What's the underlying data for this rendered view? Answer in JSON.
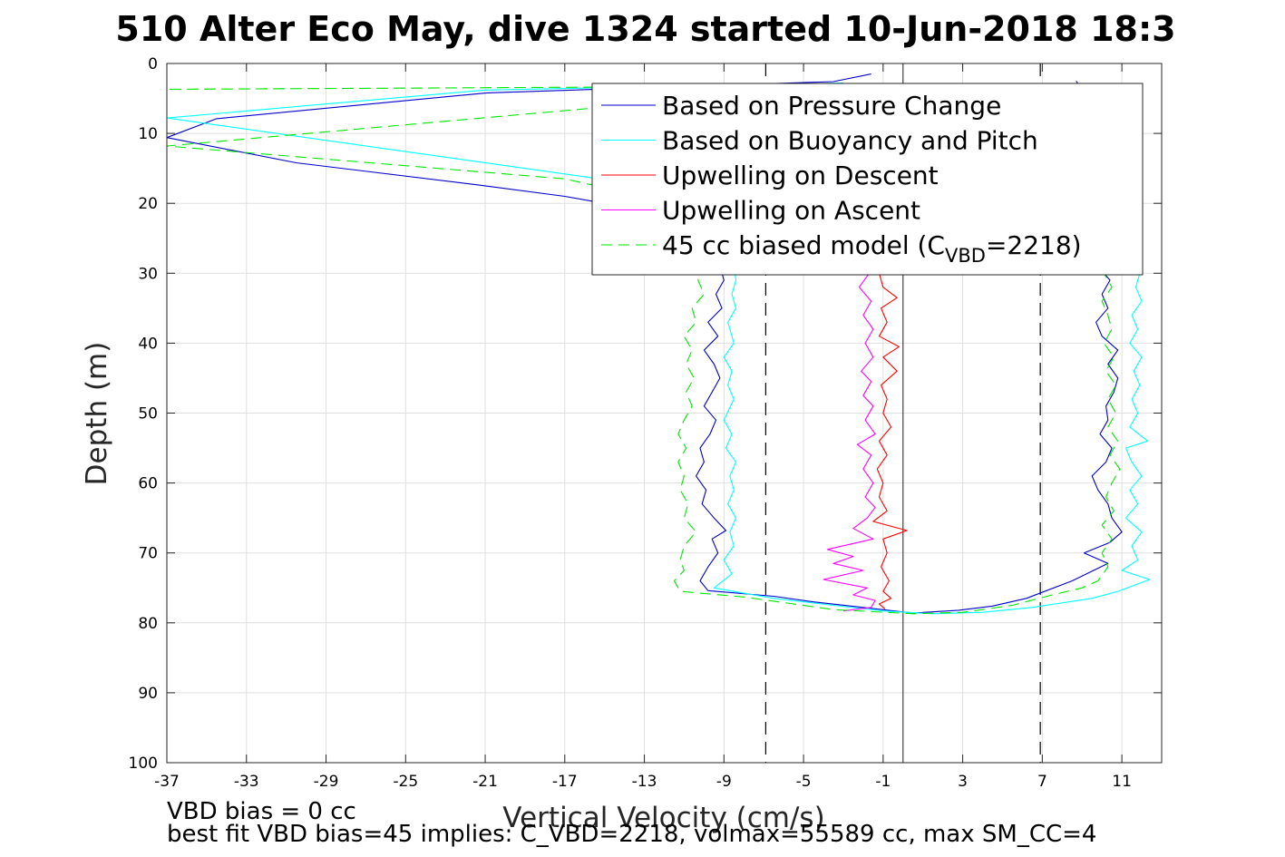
{
  "chart_data": {
    "type": "line",
    "title": "510 Alter Eco May, dive 1324 started 10-Jun-2018 18:3",
    "xlabel": "Vertical Velocity (cm/s)",
    "ylabel": "Depth (m)",
    "xlim": [
      -37,
      13
    ],
    "ylim": [
      0,
      100
    ],
    "y_reversed": true,
    "grid": true,
    "xticks": [
      -37,
      -33,
      -29,
      -25,
      -21,
      -17,
      -13,
      -9,
      -5,
      -1,
      3,
      7,
      11
    ],
    "yticks": [
      0,
      10,
      20,
      30,
      40,
      50,
      60,
      70,
      80,
      90,
      100
    ],
    "legend_placement": "top-right",
    "reference_lines": [
      {
        "x": 0,
        "style": "solid",
        "color": "#404040"
      },
      {
        "x": -6.9,
        "style": "dashed",
        "color": "#000000"
      },
      {
        "x": 6.9,
        "style": "dashed",
        "color": "#000000"
      }
    ],
    "notes": [
      "VBD bias = 0 cc",
      "best fit VBD bias=45 implies: C_VBD=2218, volmax=55589 cc, max SM_CC=4"
    ],
    "series": [
      {
        "name": "Based on Pressure Change",
        "color": "#0000c8",
        "style": "solid",
        "points": [
          [
            -1.6,
            1.5
          ],
          [
            -3.5,
            2.6
          ],
          [
            -20.9,
            4.2
          ],
          [
            -34.5,
            7.9
          ],
          [
            -37.0,
            10.6
          ],
          [
            -30.5,
            14.2
          ],
          [
            -21.0,
            17.5
          ],
          [
            -17.0,
            19.0
          ],
          [
            -12.0,
            21.5
          ],
          [
            -9.5,
            24.0
          ],
          [
            -9.3,
            28.0
          ],
          [
            -9.0,
            31.0
          ],
          [
            -9.4,
            33.0
          ],
          [
            -9.1,
            35.0
          ],
          [
            -9.8,
            37.0
          ],
          [
            -9.3,
            39.0
          ],
          [
            -10.0,
            41.0
          ],
          [
            -9.5,
            43.0
          ],
          [
            -9.2,
            45.0
          ],
          [
            -9.6,
            47.0
          ],
          [
            -10.0,
            49.0
          ],
          [
            -9.4,
            51.0
          ],
          [
            -9.7,
            53.0
          ],
          [
            -10.2,
            55.0
          ],
          [
            -10.0,
            57.0
          ],
          [
            -10.4,
            59.0
          ],
          [
            -9.9,
            61.0
          ],
          [
            -10.1,
            63.0
          ],
          [
            -9.5,
            65.0
          ],
          [
            -8.9,
            66.8
          ],
          [
            -9.6,
            68.0
          ],
          [
            -9.3,
            70.0
          ],
          [
            -9.8,
            72.0
          ],
          [
            -10.2,
            74.0
          ],
          [
            -9.8,
            75.4
          ],
          [
            -6.5,
            76.2
          ],
          [
            -4.5,
            77.0
          ],
          [
            -2.0,
            77.8
          ],
          [
            0.5,
            78.6
          ],
          [
            2.8,
            78.2
          ],
          [
            4.5,
            77.6
          ],
          [
            6.2,
            76.5
          ],
          [
            8.5,
            74.0
          ],
          [
            10.3,
            71.5
          ],
          [
            9.1,
            70.0
          ],
          [
            10.4,
            68.5
          ],
          [
            11.0,
            67.0
          ],
          [
            10.5,
            65.0
          ],
          [
            10.3,
            63.0
          ],
          [
            9.8,
            61.0
          ],
          [
            9.5,
            59.0
          ],
          [
            10.2,
            57.0
          ],
          [
            10.5,
            55.0
          ],
          [
            9.9,
            53.0
          ],
          [
            10.3,
            51.0
          ],
          [
            10.2,
            49.0
          ],
          [
            10.6,
            47.0
          ],
          [
            10.8,
            45.0
          ],
          [
            10.3,
            43.0
          ],
          [
            10.8,
            41.0
          ],
          [
            10.0,
            39.0
          ],
          [
            9.7,
            37.0
          ],
          [
            10.3,
            35.0
          ],
          [
            10.0,
            33.0
          ],
          [
            10.4,
            31.0
          ],
          [
            9.8,
            29.0
          ],
          [
            10.0,
            26.0
          ],
          [
            9.6,
            22.0
          ],
          [
            9.8,
            12.0
          ],
          [
            9.3,
            5.0
          ],
          [
            8.7,
            2.5
          ]
        ]
      },
      {
        "name": "Based on Buoyancy and Pitch",
        "color": "#00ffff",
        "style": "solid",
        "points": [
          [
            -3.0,
            2.8
          ],
          [
            -21.0,
            3.8
          ],
          [
            -37.0,
            7.8
          ],
          [
            -21.5,
            14.0
          ],
          [
            -14.0,
            17.0
          ],
          [
            -10.0,
            19.5
          ],
          [
            -8.8,
            23.0
          ],
          [
            -8.5,
            29.0
          ],
          [
            -8.4,
            31.0
          ],
          [
            -8.6,
            33.0
          ],
          [
            -8.4,
            35.0
          ],
          [
            -8.8,
            37.0
          ],
          [
            -8.5,
            40.0
          ],
          [
            -9.0,
            42.0
          ],
          [
            -8.6,
            44.0
          ],
          [
            -8.8,
            46.0
          ],
          [
            -8.5,
            48.0
          ],
          [
            -9.0,
            51.0
          ],
          [
            -8.6,
            53.0
          ],
          [
            -8.9,
            55.0
          ],
          [
            -8.4,
            57.0
          ],
          [
            -8.7,
            59.0
          ],
          [
            -8.5,
            61.0
          ],
          [
            -8.8,
            63.0
          ],
          [
            -8.4,
            65.0
          ],
          [
            -8.7,
            67.0
          ],
          [
            -8.5,
            69.0
          ],
          [
            -9.0,
            71.0
          ],
          [
            -8.6,
            73.0
          ],
          [
            -9.5,
            75.0
          ],
          [
            -6.5,
            76.5
          ],
          [
            -3.5,
            77.5
          ],
          [
            -1.0,
            78.3
          ],
          [
            1.5,
            78.7
          ],
          [
            4.0,
            78.5
          ],
          [
            6.5,
            77.8
          ],
          [
            9.5,
            76.5
          ],
          [
            10.8,
            75.5
          ],
          [
            12.4,
            73.8
          ],
          [
            11.0,
            72.5
          ],
          [
            11.8,
            71.0
          ],
          [
            11.5,
            69.0
          ],
          [
            12.0,
            67.0
          ],
          [
            11.2,
            65.0
          ],
          [
            11.8,
            63.0
          ],
          [
            11.4,
            61.0
          ],
          [
            12.0,
            59.0
          ],
          [
            11.5,
            57.0
          ],
          [
            11.2,
            55.0
          ],
          [
            12.3,
            54.0
          ],
          [
            11.4,
            52.0
          ],
          [
            11.8,
            50.0
          ],
          [
            11.5,
            48.0
          ],
          [
            11.9,
            46.0
          ],
          [
            11.6,
            44.0
          ],
          [
            12.0,
            42.0
          ],
          [
            11.4,
            40.0
          ],
          [
            11.8,
            38.0
          ],
          [
            11.5,
            36.0
          ],
          [
            12.0,
            34.0
          ],
          [
            11.7,
            32.0
          ],
          [
            11.9,
            30.0
          ],
          [
            11.6,
            26.0
          ],
          [
            11.8,
            18.0
          ],
          [
            11.3,
            10.0
          ],
          [
            10.8,
            3.5
          ]
        ]
      },
      {
        "name": "Upwelling on Descent",
        "color": "#ff0000",
        "style": "solid",
        "points": [
          [
            -1.2,
            24.0
          ],
          [
            -1.3,
            26.0
          ],
          [
            -1.0,
            28.0
          ],
          [
            -1.2,
            30.0
          ],
          [
            -1.0,
            32.0
          ],
          [
            -0.3,
            33.5
          ],
          [
            -1.1,
            35.0
          ],
          [
            -0.8,
            37.0
          ],
          [
            -1.2,
            39.0
          ],
          [
            -0.2,
            40.5
          ],
          [
            -1.0,
            42.0
          ],
          [
            -0.3,
            44.0
          ],
          [
            -1.1,
            46.0
          ],
          [
            -0.8,
            48.0
          ],
          [
            -1.0,
            50.0
          ],
          [
            -0.6,
            52.0
          ],
          [
            -1.2,
            54.0
          ],
          [
            -0.8,
            56.0
          ],
          [
            -1.3,
            58.0
          ],
          [
            -1.0,
            60.0
          ],
          [
            -1.2,
            62.0
          ],
          [
            -0.8,
            64.0
          ],
          [
            -1.5,
            65.5
          ],
          [
            0.2,
            66.8
          ],
          [
            -1.0,
            68.0
          ],
          [
            -0.8,
            70.0
          ],
          [
            -1.1,
            72.0
          ],
          [
            -0.7,
            74.0
          ],
          [
            -1.0,
            75.5
          ],
          [
            -0.6,
            76.5
          ],
          [
            -1.2,
            77.3
          ],
          [
            -0.9,
            78.0
          ]
        ]
      },
      {
        "name": "Upwelling on Ascent",
        "color": "#ff00ff",
        "style": "solid",
        "points": [
          [
            -3.0,
            78.3
          ],
          [
            -1.6,
            77.8
          ],
          [
            -1.4,
            76.8
          ],
          [
            -2.5,
            76.0
          ],
          [
            -1.8,
            75.0
          ],
          [
            -4.0,
            73.8
          ],
          [
            -2.0,
            72.5
          ],
          [
            -3.5,
            71.5
          ],
          [
            -2.5,
            70.5
          ],
          [
            -3.8,
            69.5
          ],
          [
            -1.5,
            68.0
          ],
          [
            -2.5,
            66.5
          ],
          [
            -1.8,
            65.0
          ],
          [
            -1.4,
            63.5
          ],
          [
            -1.9,
            62.0
          ],
          [
            -1.5,
            60.0
          ],
          [
            -2.0,
            58.0
          ],
          [
            -1.6,
            56.0
          ],
          [
            -2.3,
            54.5
          ],
          [
            -1.4,
            53.0
          ],
          [
            -1.9,
            51.0
          ],
          [
            -1.5,
            49.0
          ],
          [
            -2.0,
            47.5
          ],
          [
            -1.6,
            45.5
          ],
          [
            -2.1,
            44.0
          ],
          [
            -1.5,
            42.0
          ],
          [
            -1.9,
            40.0
          ],
          [
            -1.5,
            38.0
          ],
          [
            -2.0,
            36.0
          ],
          [
            -1.6,
            34.0
          ],
          [
            -2.2,
            32.0
          ],
          [
            -1.7,
            30.0
          ],
          [
            -2.0,
            27.0
          ],
          [
            -1.8,
            24.0
          ]
        ]
      },
      {
        "name": "45 cc biased model (C_VBD=2218)",
        "legend_main": "45 cc biased model (C",
        "legend_sub": "VBD",
        "legend_tail": "=2218)",
        "color": "#00e600",
        "style": "dashed",
        "points": [
          [
            -2.5,
            3.2
          ],
          [
            -37.0,
            3.7
          ],
          [
            -3.0,
            3.2
          ],
          [
            -37.0,
            11.8
          ],
          [
            -17.0,
            16.5
          ],
          [
            -11.5,
            20.0
          ],
          [
            -10.5,
            24.0
          ],
          [
            -10.2,
            28.0
          ],
          [
            -10.3,
            31.0
          ],
          [
            -10.0,
            33.0
          ],
          [
            -10.6,
            35.0
          ],
          [
            -10.4,
            37.0
          ],
          [
            -11.0,
            39.0
          ],
          [
            -10.6,
            41.0
          ],
          [
            -10.9,
            43.0
          ],
          [
            -10.5,
            45.0
          ],
          [
            -10.9,
            47.0
          ],
          [
            -10.6,
            49.0
          ],
          [
            -11.0,
            51.0
          ],
          [
            -11.3,
            53.0
          ],
          [
            -10.9,
            55.0
          ],
          [
            -11.3,
            57.0
          ],
          [
            -11.0,
            59.0
          ],
          [
            -11.2,
            61.0
          ],
          [
            -10.8,
            63.0
          ],
          [
            -11.0,
            65.0
          ],
          [
            -10.4,
            67.0
          ],
          [
            -11.0,
            69.0
          ],
          [
            -11.2,
            71.0
          ],
          [
            -11.0,
            72.5
          ],
          [
            -11.5,
            74.0
          ],
          [
            -11.2,
            75.5
          ],
          [
            -8.0,
            76.3
          ],
          [
            -5.5,
            77.3
          ],
          [
            -3.5,
            78.1
          ],
          [
            0.5,
            78.7
          ],
          [
            3.0,
            78.5
          ],
          [
            5.5,
            77.5
          ],
          [
            7.5,
            76.0
          ],
          [
            9.0,
            75.0
          ],
          [
            9.8,
            74.0
          ],
          [
            10.3,
            72.0
          ],
          [
            10.0,
            70.0
          ],
          [
            10.5,
            68.0
          ],
          [
            10.0,
            66.0
          ],
          [
            10.6,
            64.0
          ],
          [
            10.2,
            62.0
          ],
          [
            10.5,
            60.0
          ],
          [
            10.9,
            58.0
          ],
          [
            10.4,
            56.0
          ],
          [
            10.8,
            54.0
          ],
          [
            10.3,
            52.0
          ],
          [
            10.7,
            50.0
          ],
          [
            10.3,
            48.0
          ],
          [
            10.7,
            46.0
          ],
          [
            10.2,
            44.0
          ],
          [
            10.6,
            42.0
          ],
          [
            10.1,
            40.0
          ],
          [
            10.5,
            38.0
          ],
          [
            10.3,
            36.0
          ],
          [
            10.0,
            34.0
          ],
          [
            10.5,
            32.0
          ],
          [
            10.1,
            30.0
          ],
          [
            10.5,
            27.0
          ],
          [
            10.2,
            18.0
          ],
          [
            10.5,
            10.0
          ],
          [
            10.8,
            3.0
          ]
        ]
      }
    ]
  }
}
